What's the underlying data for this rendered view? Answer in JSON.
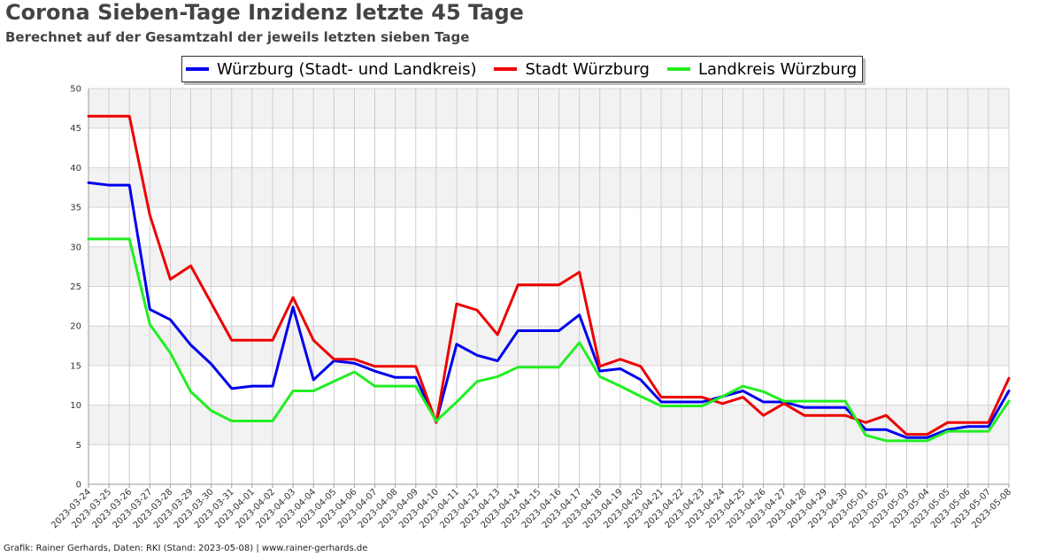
{
  "title": "Corona Sieben-Tage Inzidenz letzte 45 Tage",
  "subtitle": "Berechnet auf der Gesamtzahl der jeweils letzten sieben Tage",
  "footer": "Grafik: Rainer Gerhards, Daten: RKI (Stand: 2023-05-08) | www.rainer-gerhards.de",
  "chart_data": {
    "type": "line",
    "title": "Corona Sieben-Tage Inzidenz letzte 45 Tage",
    "subtitle": "Berechnet auf der Gesamtzahl der jeweils letzten sieben Tage",
    "xlabel": "",
    "ylabel": "",
    "ylim": [
      0,
      50
    ],
    "yticks": [
      0,
      5,
      10,
      15,
      20,
      25,
      30,
      35,
      40,
      45,
      50
    ],
    "grid": true,
    "legend_position": "top-center",
    "categories": [
      "2023-03-24",
      "2023-03-25",
      "2023-03-26",
      "2023-03-27",
      "2023-03-28",
      "2023-03-29",
      "2023-03-30",
      "2023-03-31",
      "2023-04-01",
      "2023-04-02",
      "2023-04-03",
      "2023-04-04",
      "2023-04-05",
      "2023-04-06",
      "2023-04-07",
      "2023-04-08",
      "2023-04-09",
      "2023-04-10",
      "2023-04-11",
      "2023-04-12",
      "2023-04-13",
      "2023-04-14",
      "2023-04-15",
      "2023-04-16",
      "2023-04-17",
      "2023-04-18",
      "2023-04-19",
      "2023-04-20",
      "2023-04-21",
      "2023-04-22",
      "2023-04-23",
      "2023-04-24",
      "2023-04-25",
      "2023-04-26",
      "2023-04-27",
      "2023-04-28",
      "2023-04-29",
      "2023-04-30",
      "2023-05-01",
      "2023-05-02",
      "2023-05-03",
      "2023-05-04",
      "2023-05-05",
      "2023-05-06",
      "2023-05-07",
      "2023-05-08"
    ],
    "series": [
      {
        "name": "Würzburg (Stadt- und Landkreis)",
        "color": "#0000ee",
        "values": [
          38.1,
          37.8,
          37.8,
          22.1,
          20.8,
          17.6,
          15.2,
          12.1,
          12.4,
          12.4,
          22.4,
          13.2,
          15.6,
          15.3,
          14.3,
          13.5,
          13.5,
          7.9,
          17.7,
          16.3,
          15.6,
          19.4,
          19.4,
          19.4,
          21.4,
          14.3,
          14.6,
          13.2,
          10.4,
          10.4,
          10.4,
          11.1,
          11.8,
          10.4,
          10.4,
          9.7,
          9.7,
          9.7,
          6.9,
          6.9,
          5.9,
          5.9,
          6.9,
          7.3,
          7.3,
          11.8
        ]
      },
      {
        "name": "Stadt Würzburg",
        "color": "#ee0000",
        "values": [
          46.5,
          46.5,
          46.5,
          34.0,
          25.9,
          27.6,
          22.9,
          18.2,
          18.2,
          18.2,
          23.6,
          18.2,
          15.8,
          15.8,
          14.9,
          14.9,
          14.9,
          7.8,
          22.8,
          22.0,
          18.9,
          25.2,
          25.2,
          25.2,
          26.8,
          14.9,
          15.8,
          14.9,
          11.0,
          11.0,
          11.0,
          10.2,
          11.0,
          8.7,
          10.2,
          8.7,
          8.7,
          8.7,
          7.8,
          8.7,
          6.3,
          6.3,
          7.8,
          7.8,
          7.8,
          13.4
        ]
      },
      {
        "name": "Landkreis Würzburg",
        "color": "#22ee22",
        "values": [
          31.0,
          31.0,
          31.0,
          20.2,
          16.6,
          11.7,
          9.3,
          8.0,
          8.0,
          8.0,
          11.8,
          11.8,
          13.0,
          14.2,
          12.4,
          12.4,
          12.4,
          8.0,
          10.4,
          13.0,
          13.6,
          14.8,
          14.8,
          14.8,
          17.9,
          13.6,
          12.4,
          11.1,
          9.9,
          9.9,
          9.9,
          11.1,
          12.4,
          11.7,
          10.5,
          10.5,
          10.5,
          10.5,
          6.2,
          5.5,
          5.5,
          5.5,
          6.7,
          6.7,
          6.7,
          10.5
        ]
      }
    ]
  }
}
